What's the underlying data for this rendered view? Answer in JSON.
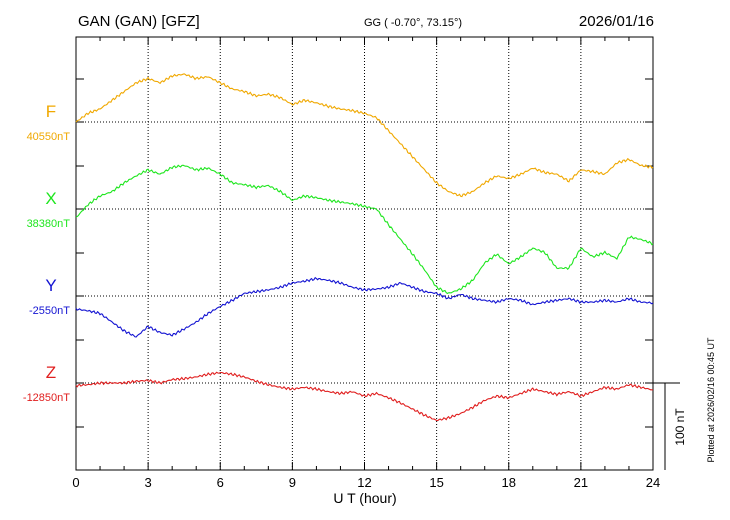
{
  "header": {
    "station": "GAN (GAN)  [GFZ]",
    "coords": "GG ( -0.70°,  73.15°)",
    "date": "2026/01/16"
  },
  "plotted_note": "Plotted at 2026/02/16 00:45 UT",
  "chart_data": {
    "type": "line",
    "title": "GAN (GAN)  [GFZ]",
    "xlabel": "U T (hour)",
    "ylabel": "",
    "xlim": [
      0,
      24
    ],
    "xticks": [
      0,
      3,
      6,
      9,
      12,
      15,
      18,
      21,
      24
    ],
    "grid": "dotted vertical every 3 h; dotted horizontal at each component baseline",
    "scale_bar": {
      "label": "100 nT",
      "value_nT": 100
    },
    "series": [
      {
        "name": "F",
        "baseline_label": "40550nT",
        "baseline_nT": 40550,
        "color": "#f0a800",
        "x": [
          0,
          0.5,
          1,
          1.5,
          2,
          2.5,
          3,
          3.5,
          4,
          4.5,
          5,
          5.5,
          6,
          6.5,
          7,
          7.5,
          8,
          8.5,
          9,
          9.5,
          10,
          10.5,
          11,
          11.5,
          12,
          12.5,
          13,
          13.5,
          14,
          14.5,
          15,
          15.5,
          16,
          16.5,
          17,
          17.5,
          18,
          18.5,
          19,
          19.5,
          20,
          20.5,
          21,
          21.5,
          22,
          22.5,
          23,
          23.5,
          24
        ],
        "values": [
          40550,
          40560,
          40565,
          40575,
          40585,
          40595,
          40600,
          40595,
          40603,
          40605,
          40600,
          40602,
          40595,
          40588,
          40585,
          40580,
          40582,
          40578,
          40570,
          40575,
          40572,
          40568,
          40565,
          40563,
          40560,
          40555,
          40540,
          40525,
          40510,
          40495,
          40480,
          40470,
          40465,
          40470,
          40480,
          40488,
          40485,
          40490,
          40497,
          40492,
          40490,
          40482,
          40495,
          40493,
          40490,
          40503,
          40507,
          40500,
          40498
        ]
      },
      {
        "name": "X",
        "baseline_label": "38380nT",
        "baseline_nT": 38380,
        "color": "#1ee61e",
        "x": [
          0,
          0.5,
          1,
          1.5,
          2,
          2.5,
          3,
          3.5,
          4,
          4.5,
          5,
          5.5,
          6,
          6.5,
          7,
          7.5,
          8,
          8.5,
          9,
          9.5,
          10,
          10.5,
          11,
          11.5,
          12,
          12.5,
          13,
          13.5,
          14,
          14.5,
          15,
          15.5,
          16,
          16.5,
          17,
          17.5,
          18,
          18.5,
          19,
          19.5,
          20,
          20.5,
          21,
          21.5,
          22,
          22.5,
          23,
          23.5,
          24
        ],
        "values": [
          38370,
          38385,
          38395,
          38400,
          38410,
          38418,
          38425,
          38420,
          38428,
          38430,
          38425,
          38427,
          38420,
          38410,
          38408,
          38405,
          38407,
          38400,
          38390,
          38395,
          38393,
          38390,
          38388,
          38386,
          38383,
          38380,
          38362,
          38345,
          38328,
          38310,
          38290,
          38283,
          38288,
          38298,
          38318,
          38328,
          38317,
          38325,
          38335,
          38330,
          38312,
          38312,
          38335,
          38325,
          38330,
          38323,
          38348,
          38345,
          38340
        ]
      },
      {
        "name": "Y",
        "baseline_label": "-2550nT",
        "baseline_nT": -2550,
        "color": "#1414d2",
        "x": [
          0,
          0.5,
          1,
          1.5,
          2,
          2.5,
          3,
          3.5,
          4,
          4.5,
          5,
          5.5,
          6,
          6.5,
          7,
          7.5,
          8,
          8.5,
          9,
          9.5,
          10,
          10.5,
          11,
          11.5,
          12,
          12.5,
          13,
          13.5,
          14,
          14.5,
          15,
          15.5,
          16,
          16.5,
          17,
          17.5,
          18,
          18.5,
          19,
          19.5,
          20,
          20.5,
          21,
          21.5,
          22,
          22.5,
          23,
          23.5,
          24
        ],
        "values": [
          -2565,
          -2567,
          -2570,
          -2580,
          -2590,
          -2597,
          -2585,
          -2592,
          -2595,
          -2588,
          -2580,
          -2570,
          -2562,
          -2555,
          -2547,
          -2545,
          -2543,
          -2540,
          -2535,
          -2533,
          -2530,
          -2532,
          -2535,
          -2540,
          -2543,
          -2542,
          -2540,
          -2535,
          -2540,
          -2545,
          -2547,
          -2553,
          -2548,
          -2553,
          -2555,
          -2557,
          -2553,
          -2555,
          -2560,
          -2557,
          -2555,
          -2553,
          -2557,
          -2557,
          -2555,
          -2557,
          -2553,
          -2557,
          -2558
        ]
      },
      {
        "name": "Z",
        "baseline_label": "-12850nT",
        "baseline_nT": -12850,
        "color": "#e01e1e",
        "x": [
          0,
          0.5,
          1,
          1.5,
          2,
          2.5,
          3,
          3.5,
          4,
          4.5,
          5,
          5.5,
          6,
          6.5,
          7,
          7.5,
          8,
          8.5,
          9,
          9.5,
          10,
          10.5,
          11,
          11.5,
          12,
          12.5,
          13,
          13.5,
          14,
          14.5,
          15,
          15.5,
          16,
          16.5,
          17,
          17.5,
          18,
          18.5,
          19,
          19.5,
          20,
          20.5,
          21,
          21.5,
          22,
          22.5,
          23,
          23.5,
          24
        ],
        "values": [
          -12853,
          -12852,
          -12850,
          -12850,
          -12850,
          -12848,
          -12847,
          -12850,
          -12846,
          -12845,
          -12843,
          -12840,
          -12838,
          -12840,
          -12843,
          -12848,
          -12852,
          -12855,
          -12857,
          -12855,
          -12857,
          -12860,
          -12862,
          -12860,
          -12865,
          -12862,
          -12867,
          -12873,
          -12880,
          -12887,
          -12893,
          -12890,
          -12885,
          -12878,
          -12870,
          -12865,
          -12867,
          -12862,
          -12857,
          -12860,
          -12863,
          -12860,
          -12865,
          -12860,
          -12855,
          -12857,
          -12852,
          -12855,
          -12858
        ]
      }
    ]
  }
}
